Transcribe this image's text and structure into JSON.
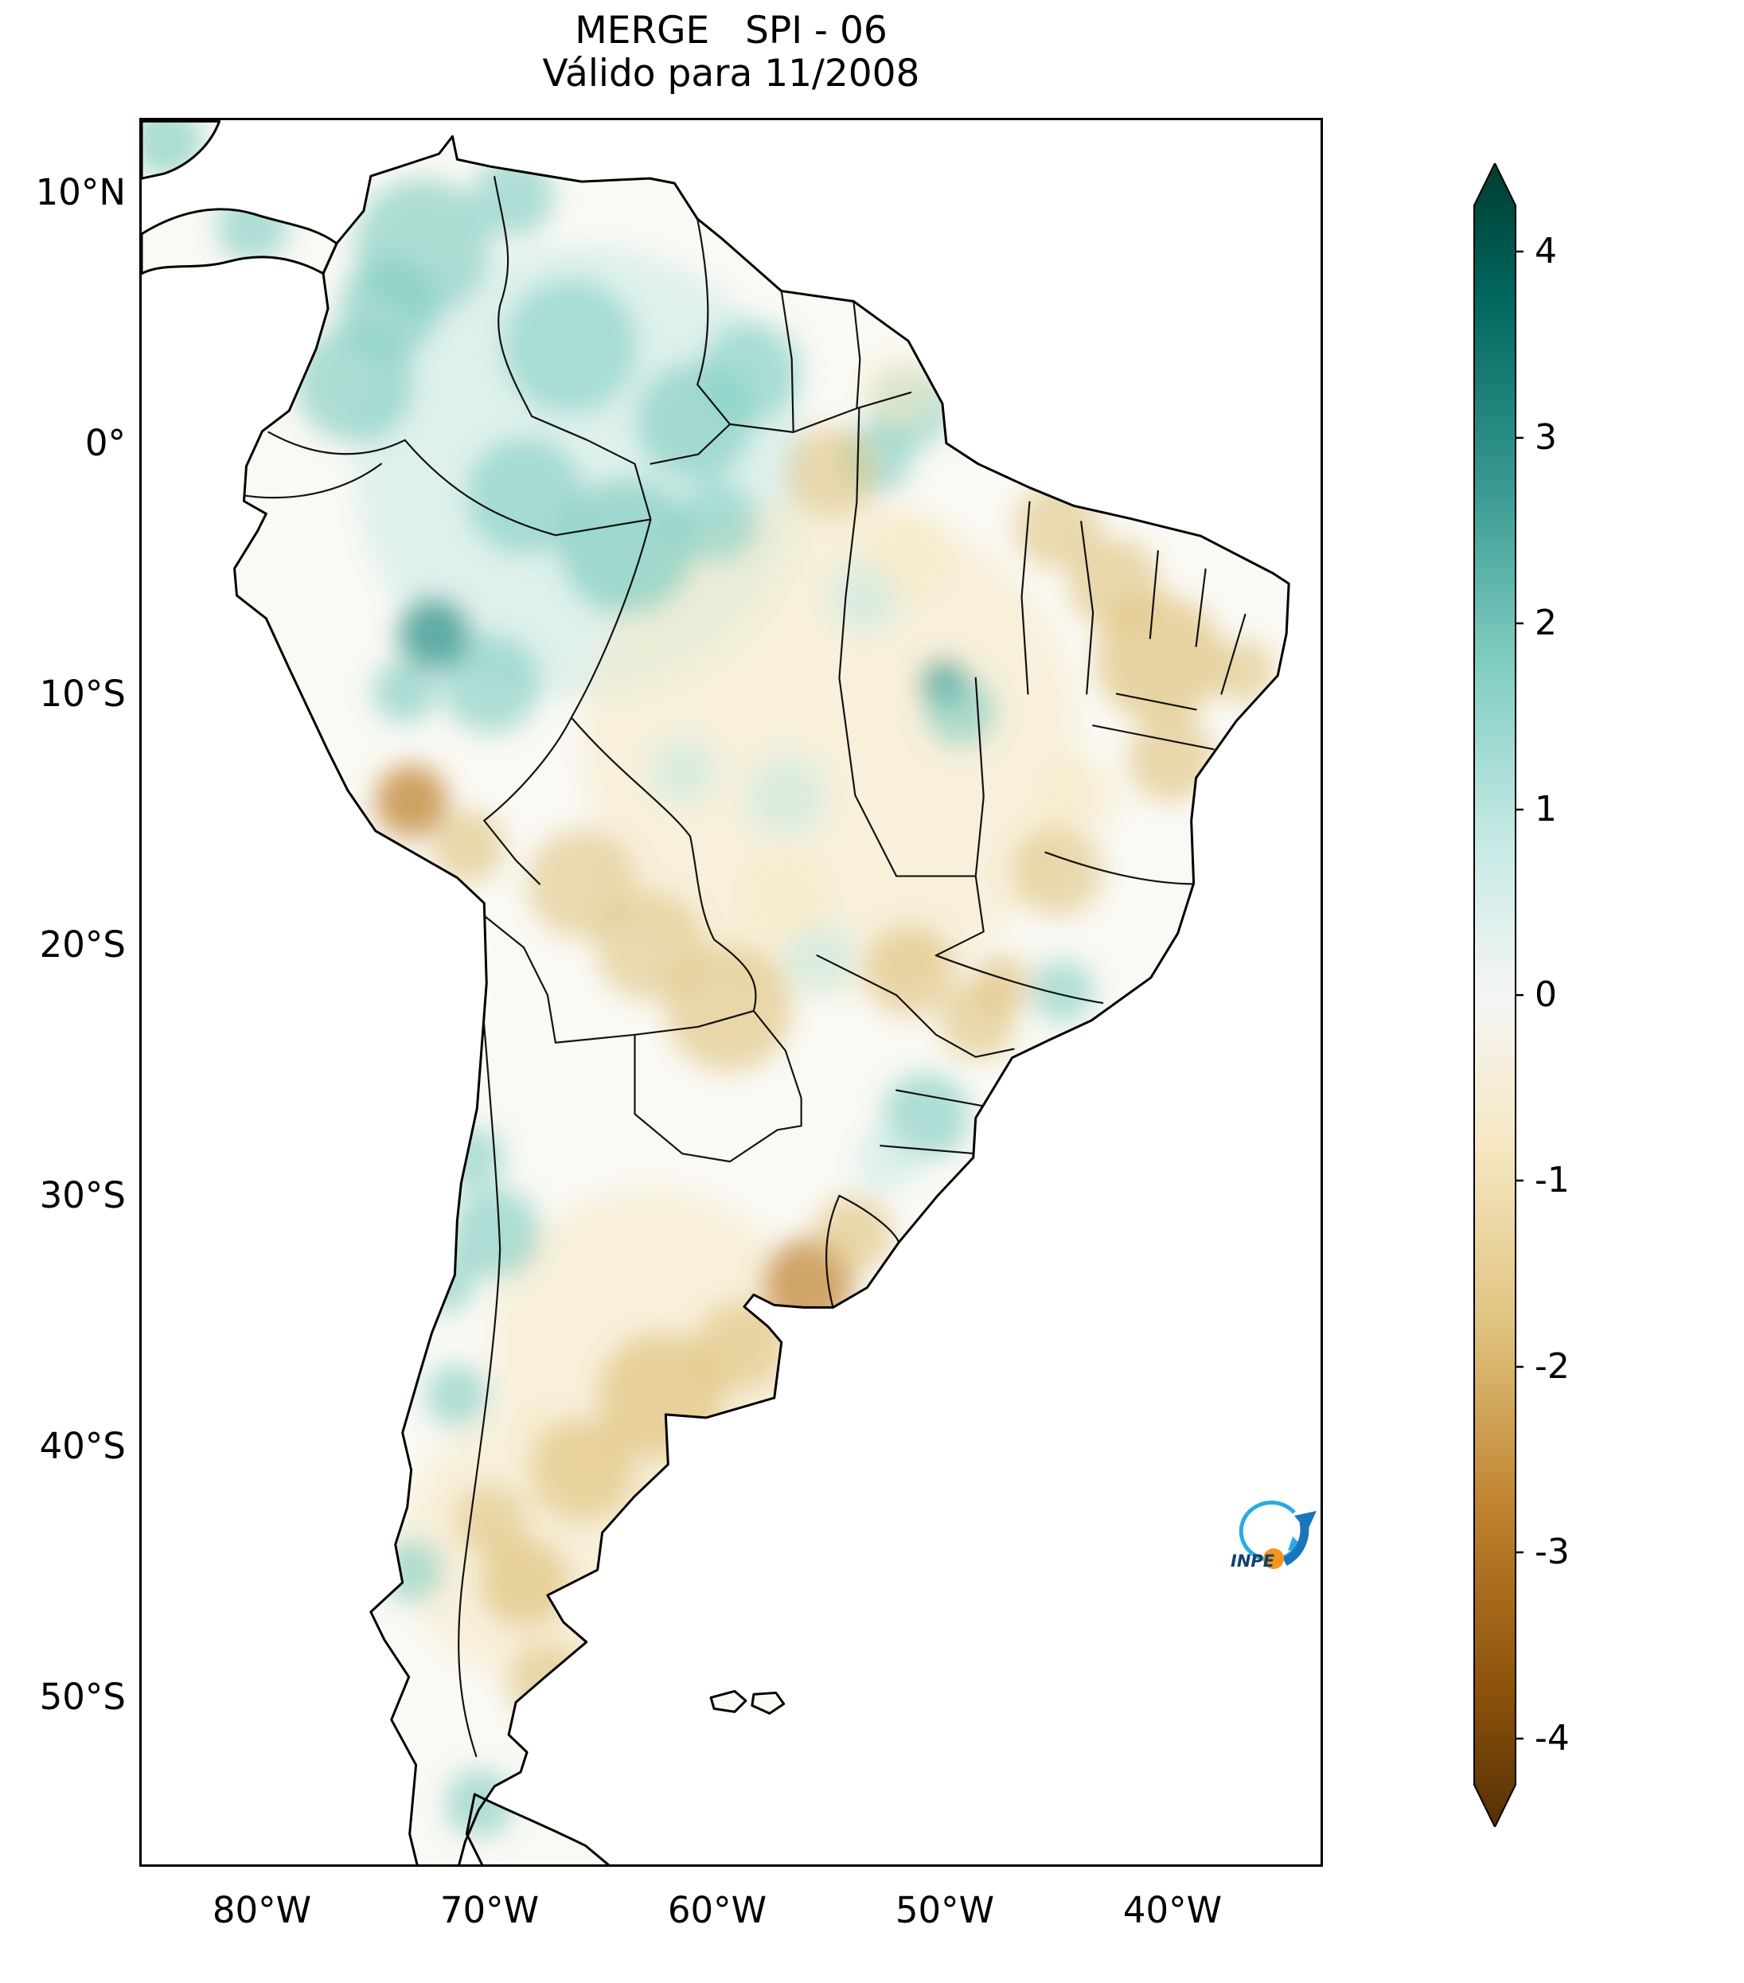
{
  "title": {
    "line1": "MERGE   SPI - 06",
    "line2": "Válido para 11/2008"
  },
  "logo": {
    "text": "INPE"
  },
  "chart_data": {
    "type": "heatmap",
    "map_type": "geographic-raster-map",
    "title": "MERGE   SPI - 06",
    "subtitle": "Válido para 11/2008",
    "dataset": "MERGE",
    "index": "SPI - 06",
    "valid_for": "11/2008",
    "region": "South America",
    "projection_extent": {
      "lon_min": -85.4,
      "lon_max": -33.4,
      "lat_min": -56.7,
      "lat_max": 13
    },
    "x_tick_labels": [
      "80°W",
      "70°W",
      "60°W",
      "50°W",
      "40°W"
    ],
    "x_tick_lons": [
      -80,
      -70,
      -60,
      -50,
      -40
    ],
    "y_tick_labels": [
      "10°N",
      "0°",
      "10°S",
      "20°S",
      "30°S",
      "40°S",
      "50°S"
    ],
    "y_tick_lats": [
      10,
      0,
      -10,
      -20,
      -30,
      -40,
      -50
    ],
    "colorbar": {
      "tick_labels": [
        "4",
        "3",
        "2",
        "1",
        "0",
        "-1",
        "-2",
        "-3",
        "-4"
      ],
      "tick_values": [
        4,
        3,
        2,
        1,
        0,
        -1,
        -2,
        -3,
        -4
      ],
      "vmin": -4.25,
      "vmax": 4.25,
      "extend": "both",
      "colormap": "BrBG",
      "stops": [
        [
          4.5,
          "#003c30"
        ],
        [
          3.5,
          "#01665e"
        ],
        [
          2.5,
          "#35978f"
        ],
        [
          1.5,
          "#80cdc1"
        ],
        [
          0.8,
          "#c7eae5"
        ],
        [
          0,
          "#f5f5f5"
        ],
        [
          -0.8,
          "#f6e8c3"
        ],
        [
          -1.5,
          "#dfc27d"
        ],
        [
          -2.5,
          "#bf812d"
        ],
        [
          -3.5,
          "#8c510a"
        ],
        [
          -4.5,
          "#543005"
        ]
      ]
    },
    "anomalies_format": "[lon, lat, spi_value, radius_deg]",
    "anomalies": [
      [
        -66,
        -1,
        0.5,
        10
      ],
      [
        -55,
        -12,
        -0.5,
        11
      ],
      [
        -63,
        -36,
        -0.6,
        7
      ],
      [
        -68,
        -44,
        -0.6,
        6
      ],
      [
        -84.3,
        12.2,
        1.6,
        1.6
      ],
      [
        -80.5,
        8.8,
        1.4,
        1.6
      ],
      [
        -73.0,
        8.0,
        1.6,
        3.0
      ],
      [
        -76.0,
        2.5,
        1.6,
        2.6
      ],
      [
        -74.5,
        5.5,
        1.9,
        2.2
      ],
      [
        -69,
        10,
        1.4,
        1.8
      ],
      [
        -66.5,
        4.0,
        1.2,
        3.0
      ],
      [
        -61.0,
        1.0,
        1.6,
        2.6
      ],
      [
        -58.5,
        3.0,
        1.2,
        2.2
      ],
      [
        -51.5,
        1.5,
        1.3,
        1.8
      ],
      [
        -64.0,
        -4.0,
        1.9,
        3.0
      ],
      [
        -68.5,
        -2.0,
        1.4,
        2.6
      ],
      [
        -70.0,
        -9.5,
        1.3,
        2.2
      ],
      [
        -72.5,
        -7.5,
        2.6,
        1.6
      ],
      [
        -73.8,
        -9.8,
        1.7,
        1.4
      ],
      [
        -60.0,
        -3.0,
        1.2,
        1.8
      ],
      [
        -53.0,
        -0.5,
        1.2,
        1.6
      ],
      [
        -53.5,
        -6.0,
        1.1,
        1.6
      ],
      [
        -50.0,
        -9.5,
        2.0,
        1.1
      ],
      [
        -49.3,
        -10.6,
        1.3,
        1.6
      ],
      [
        -57.0,
        -14.0,
        1.0,
        1.8
      ],
      [
        -61.5,
        -13.0,
        1.0,
        1.5
      ],
      [
        -55.5,
        -20.5,
        1.0,
        1.6
      ],
      [
        -44.8,
        -21.8,
        1.2,
        1.4
      ],
      [
        -50.8,
        -26.8,
        1.5,
        1.9
      ],
      [
        -52.5,
        -28.5,
        1.1,
        1.4
      ],
      [
        -69.8,
        -31.5,
        1.5,
        2.0
      ],
      [
        -70.8,
        -28.5,
        1.2,
        1.4
      ],
      [
        -72,
        -33.5,
        1.3,
        1.3
      ],
      [
        -71.5,
        -38,
        1.3,
        1.4
      ],
      [
        -73.5,
        -45,
        1.2,
        1.4
      ],
      [
        -70.5,
        -54.3,
        1.5,
        1.5
      ],
      [
        -40.5,
        -8.5,
        -2.0,
        2.8
      ],
      [
        -42.5,
        -5.5,
        -1.4,
        2.0
      ],
      [
        -40.0,
        -12.5,
        -1.4,
        1.9
      ],
      [
        -36.8,
        -9.0,
        -1.2,
        1.4
      ],
      [
        -45.0,
        -3.2,
        -1.2,
        1.9
      ],
      [
        -55.0,
        -1.0,
        -1.2,
        2.0
      ],
      [
        -52.0,
        2.2,
        -1.0,
        1.6
      ],
      [
        -51.5,
        -4.5,
        -1.0,
        1.8
      ],
      [
        -73.5,
        -14.2,
        -2.4,
        1.6
      ],
      [
        -71.0,
        -16.0,
        -1.4,
        1.6
      ],
      [
        -66.0,
        -17.5,
        -1.2,
        2.4
      ],
      [
        -63.0,
        -20.0,
        -1.2,
        2.4
      ],
      [
        -59.5,
        -22.5,
        -1.4,
        2.8
      ],
      [
        -57.0,
        -18.0,
        -1.0,
        1.9
      ],
      [
        -51.5,
        -21.0,
        -1.6,
        2.0
      ],
      [
        -48.5,
        -23.0,
        -1.3,
        1.7
      ],
      [
        -47.5,
        -21.5,
        -1.5,
        1.3
      ],
      [
        -45.0,
        -17.0,
        -1.2,
        2.0
      ],
      [
        -44.0,
        -14.0,
        -1.0,
        1.7
      ],
      [
        -56.0,
        -33.5,
        -2.2,
        2.0
      ],
      [
        -54.0,
        -31.5,
        -1.4,
        1.7
      ],
      [
        -62.5,
        -38.0,
        -2.0,
        2.8
      ],
      [
        -59.0,
        -36.0,
        -1.4,
        2.0
      ],
      [
        -66.0,
        -41.0,
        -1.4,
        2.3
      ],
      [
        -68.5,
        -45.5,
        -1.8,
        2.0
      ],
      [
        -70.0,
        -43.0,
        -1.2,
        1.6
      ],
      [
        -67.5,
        -49.5,
        -1.2,
        1.8
      ]
    ]
  }
}
